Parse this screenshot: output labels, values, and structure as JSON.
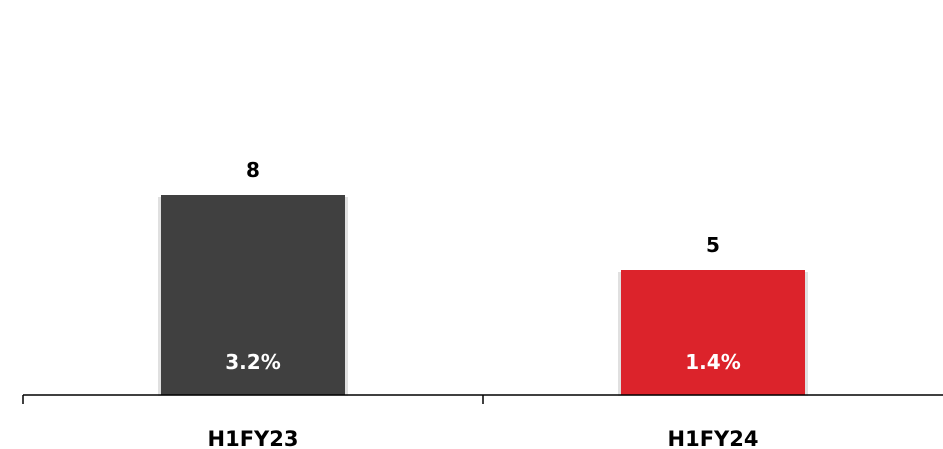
{
  "chart_data": {
    "type": "bar",
    "categories": [
      "H1FY23",
      "H1FY24"
    ],
    "values": [
      8,
      5
    ],
    "inner_labels": [
      "3.2%",
      "1.4%"
    ],
    "bar_colors": [
      "#404040",
      "#dc232b"
    ],
    "ylim": [
      0,
      15
    ],
    "grid": false,
    "legend": "none"
  }
}
